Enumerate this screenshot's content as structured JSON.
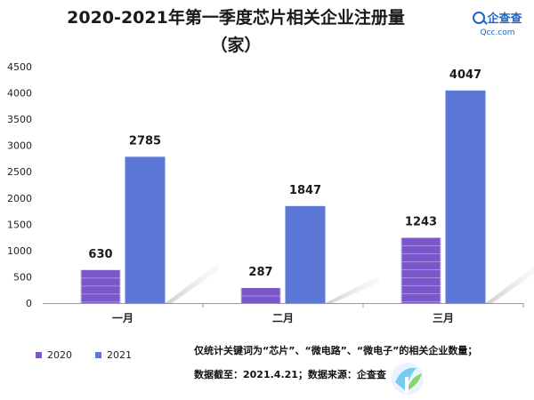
{
  "header": {
    "title_line1": "2020-2021年第一季度芯片相关企业注册量",
    "title_line2": "（家）"
  },
  "brand": {
    "name": "企查查",
    "url": "Qcc.com"
  },
  "footer": {
    "note_line1": "仅统计关键词为“芯片”、“微电路”、“微电子”的相关企业数量；",
    "note_line2": "数据截至：2021.4.21；数据来源：企查查"
  },
  "colors": {
    "series2020": "#7b57c9",
    "series2021": "#5b78d6"
  },
  "chart_data": {
    "type": "bar",
    "title": "2020-2021年第一季度芯片相关企业注册量（家）",
    "categories": [
      "一月",
      "二月",
      "三月"
    ],
    "series": [
      {
        "name": "2020",
        "values": [
          630,
          287,
          1243
        ],
        "labels": [
          "630",
          "287",
          "1243"
        ]
      },
      {
        "name": "2021",
        "values": [
          2785,
          1847,
          4047
        ],
        "labels": [
          "2785",
          "1847",
          "4047"
        ]
      }
    ],
    "yticks": [
      "0",
      "500",
      "1000",
      "1500",
      "2000",
      "2500",
      "3000",
      "3500",
      "4000",
      "4500"
    ],
    "ylim": [
      0,
      4500
    ],
    "xlabel": "",
    "ylabel": "",
    "legend": "bottom-left",
    "grid": false
  }
}
